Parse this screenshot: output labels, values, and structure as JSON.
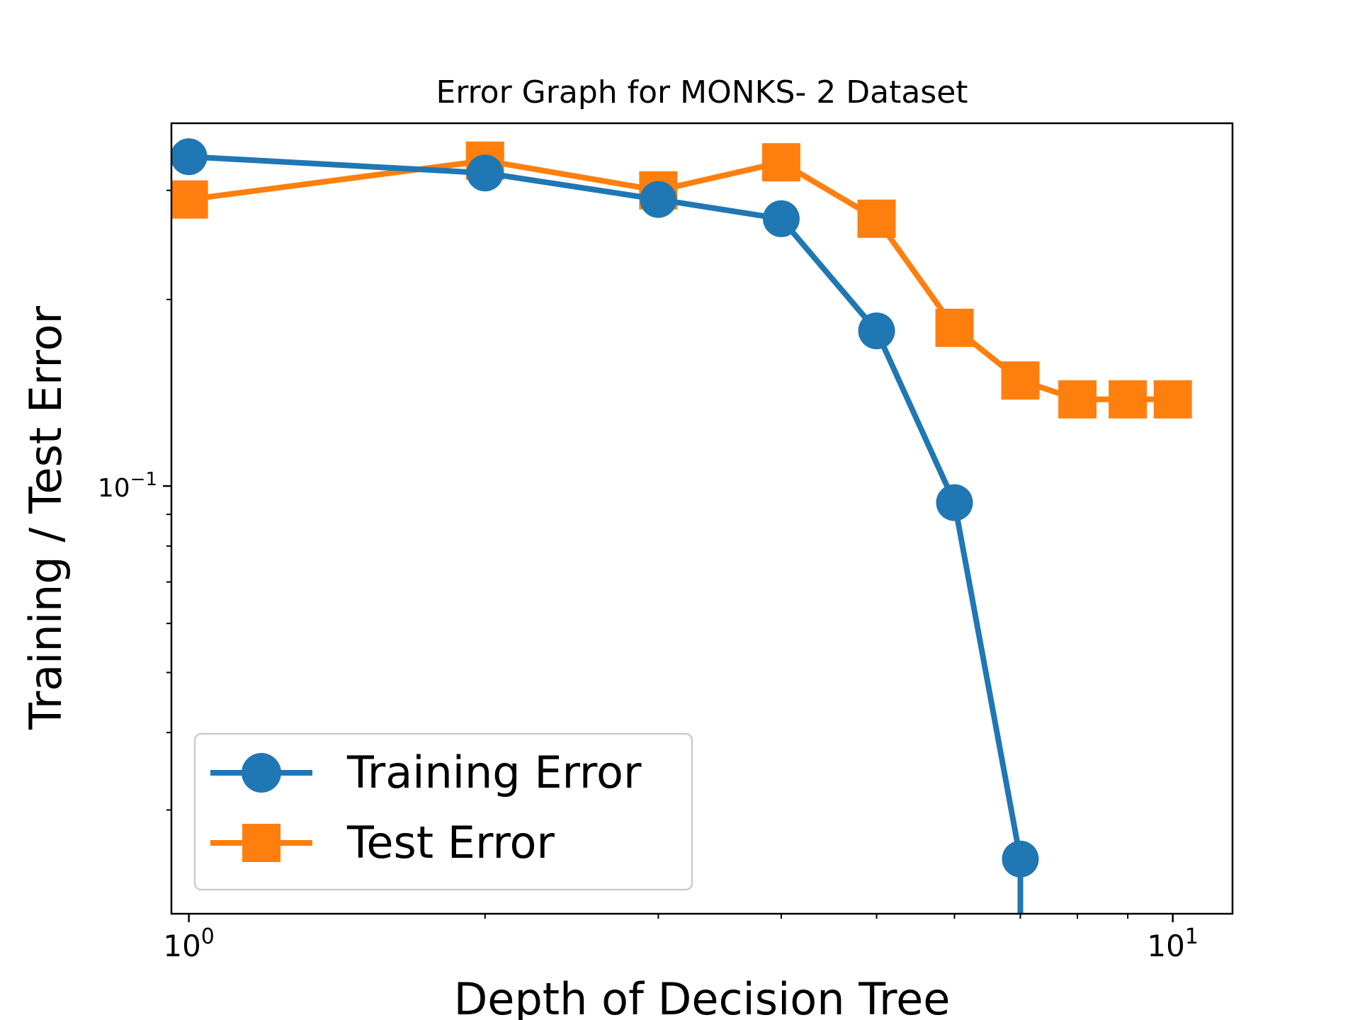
{
  "chart_data": {
    "type": "line",
    "title": "Error Graph for MONKS- 2 Dataset",
    "xlabel": "Depth of Decision Tree",
    "ylabel": "Training / Test Error",
    "x_scale": "log",
    "y_scale": "log",
    "xlim": [
      0.96,
      11.5
    ],
    "ylim": [
      0.0204,
      0.385
    ],
    "x_ticks": [
      {
        "value": 1,
        "base": "10",
        "exp": "0"
      },
      {
        "value": 10,
        "base": "10",
        "exp": "1"
      }
    ],
    "y_ticks": [
      {
        "value": 0.1,
        "base": "10",
        "exp": "−1"
      }
    ],
    "grid": false,
    "legend_position": "lower-left",
    "series": [
      {
        "name": "Training Error",
        "color": "#1f77b4",
        "marker": "circle",
        "x": [
          1,
          2,
          3,
          4,
          5,
          6,
          7
        ],
        "y": [
          0.34,
          0.32,
          0.29,
          0.27,
          0.178,
          0.094,
          0.025
        ]
      },
      {
        "name": "Test Error",
        "color": "#ff7f0e",
        "marker": "square",
        "x": [
          1,
          2,
          3,
          4,
          5,
          6,
          7,
          8,
          9,
          10
        ],
        "y": [
          0.29,
          0.335,
          0.3,
          0.333,
          0.27,
          0.18,
          0.148,
          0.138,
          0.138,
          0.138
        ]
      }
    ]
  }
}
